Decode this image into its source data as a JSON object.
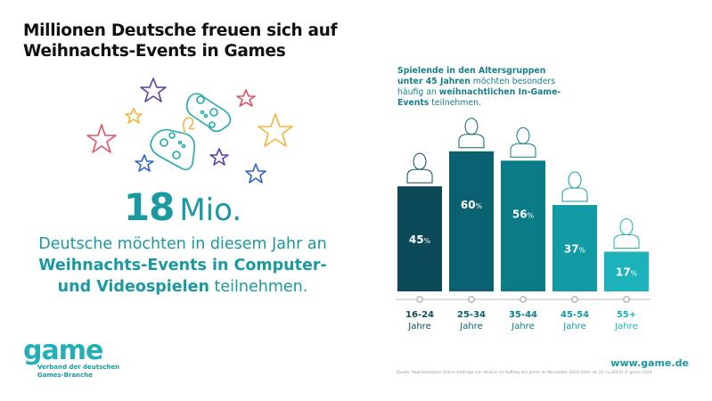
{
  "header": {
    "title_line1": "Millionen Deutsche freuen sich auf",
    "title_line2": "Weihnachts-Events in Games"
  },
  "highlight": {
    "number": "18",
    "unit": "Mio.",
    "text_part1": "Deutsche möchten in diesem Jahr an ",
    "text_bold": "Weihnachts-Events in Computer- und Videospielen",
    "text_part2": " teilnehmen."
  },
  "illustration": {
    "icons": [
      "star-icon",
      "gamepad-icon"
    ],
    "star_colors": [
      "#e05566",
      "#f2b53a",
      "#5a3fa8",
      "#2f62c8"
    ],
    "controller_color": "#22a9ad",
    "cable_color": "#f2b53a"
  },
  "logo": {
    "word": "game",
    "tagline_line1": "Verband der deutschen",
    "tagline_line2": "Games-Branche"
  },
  "chart_intro": {
    "bold1": "Spielende in den Altersgruppen unter 45 Jahren",
    "text1": " möchten besonders häufig an ",
    "bold2": "weihnachtlichen In-Game-Events",
    "text2": " teilnehmen."
  },
  "chart_data": {
    "type": "bar",
    "title": "Spielende in den Altersgruppen unter 45 Jahren möchten besonders häufig an weihnachtlichen In-Game-Events teilnehmen.",
    "categories": [
      "16-24 Jahre",
      "25-34 Jahre",
      "35-44 Jahre",
      "45-54 Jahre",
      "55+ Jahre"
    ],
    "category_lines": [
      [
        "16-24",
        "Jahre"
      ],
      [
        "25-34",
        "Jahre"
      ],
      [
        "35-44",
        "Jahre"
      ],
      [
        "45-54",
        "Jahre"
      ],
      [
        "55+",
        "Jahre"
      ]
    ],
    "values": [
      45,
      60,
      56,
      37,
      17
    ],
    "value_labels": [
      "45",
      "60",
      "56",
      "37",
      "17"
    ],
    "unit": "%",
    "ylim": [
      0,
      100
    ],
    "xlabel": "",
    "ylabel": "",
    "grid": false,
    "bar_colors": [
      "#0c4a5a",
      "#0b6170",
      "#0b7b86",
      "#119aa3",
      "#1db2ba"
    ],
    "label_colors": [
      "#0c4a5a",
      "#0b6170",
      "#0b7b86",
      "#119aa3",
      "#1db2ba"
    ],
    "figure_icons": [
      "person-young-woman-icon",
      "person-man-icon",
      "person-woman-icon",
      "person-man-glasses-icon",
      "person-senior-icon"
    ]
  },
  "footer": {
    "url": "www.game.de",
    "source": "Quelle: Repräsentative Online-Umfrage von YouGov im Auftrag des game im November 2024 (Alter ab 16, n=2015) © game 2024"
  }
}
